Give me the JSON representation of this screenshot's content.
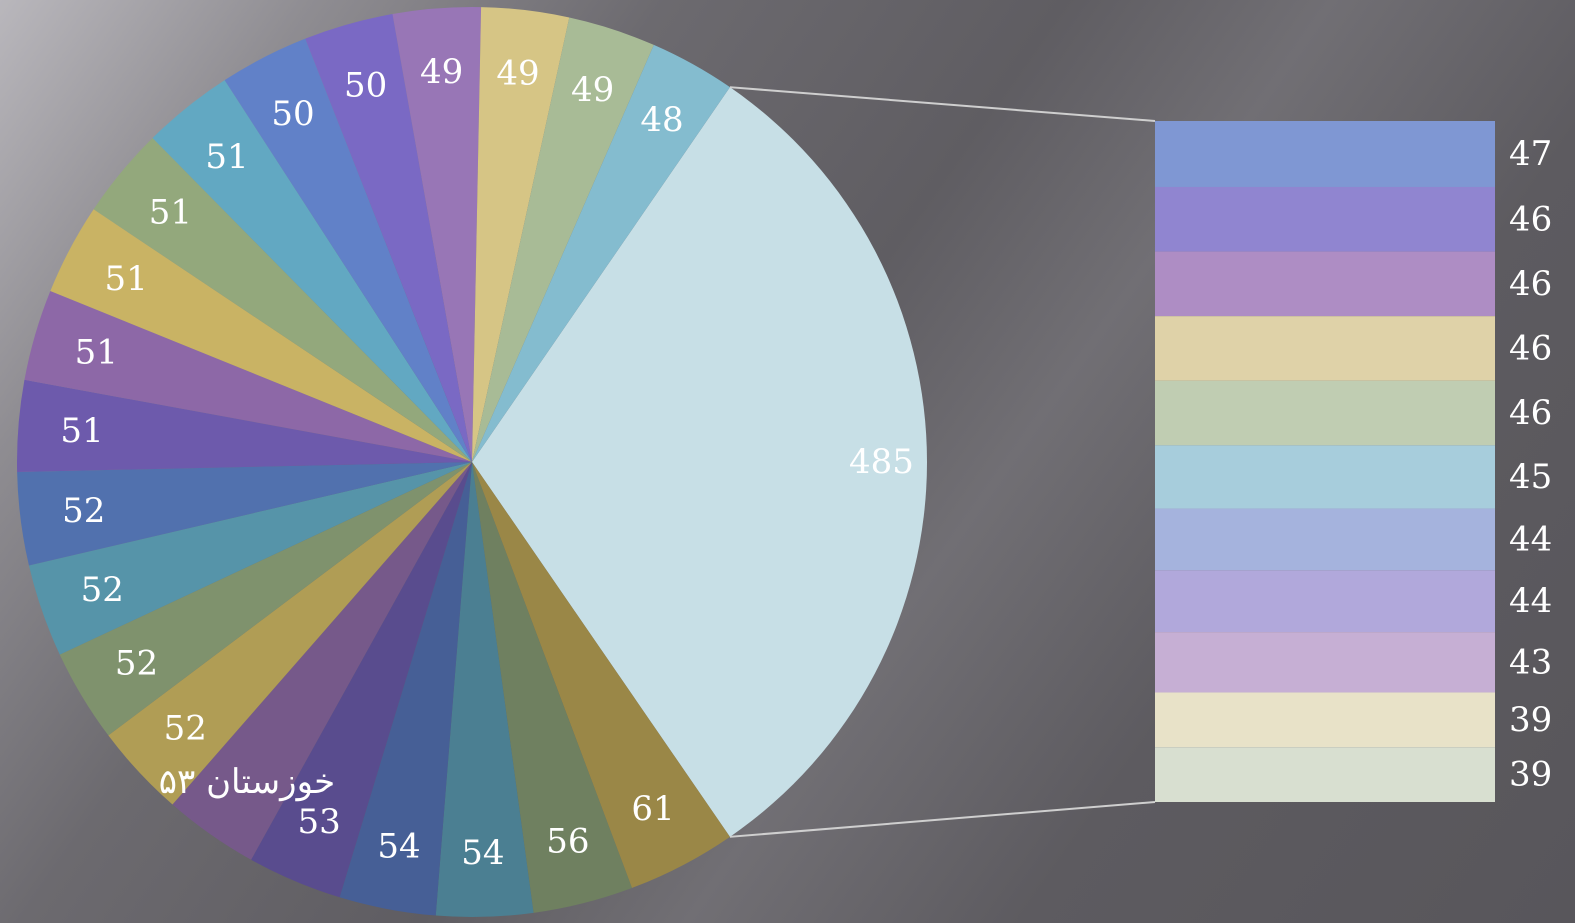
{
  "chart_data": {
    "type": "pie",
    "subtype": "bar-of-pie",
    "pie": {
      "slices": [
        {
          "value": 485,
          "label": "485",
          "color": "#c7dfe6"
        },
        {
          "value": 61,
          "label": "61",
          "color": "#9a8747"
        },
        {
          "value": 56,
          "label": "56",
          "color": "#6f8060"
        },
        {
          "value": 54,
          "label": "54",
          "color": "#4b7f92"
        },
        {
          "value": 54,
          "label": "54",
          "color": "#465f96"
        },
        {
          "value": 53,
          "label": "53",
          "color": "#594c8e"
        },
        {
          "value": 53,
          "label": "خوزستان ۵۳",
          "color": "#76598a"
        },
        {
          "value": 52,
          "label": "52",
          "color": "#b09d55"
        },
        {
          "value": 52,
          "label": "52",
          "color": "#7f926d"
        },
        {
          "value": 52,
          "label": "52",
          "color": "#5694a9"
        },
        {
          "value": 52,
          "label": "52",
          "color": "#5171ae"
        },
        {
          "value": 51,
          "label": "51",
          "color": "#6d5aac"
        },
        {
          "value": 51,
          "label": "51",
          "color": "#8d68a7"
        },
        {
          "value": 51,
          "label": "51",
          "color": "#c9b364"
        },
        {
          "value": 51,
          "label": "51",
          "color": "#93a87c"
        },
        {
          "value": 51,
          "label": "51",
          "color": "#62a8c2"
        },
        {
          "value": 50,
          "label": "50",
          "color": "#6181c8"
        },
        {
          "value": 50,
          "label": "50",
          "color": "#7a69c4"
        },
        {
          "value": 49,
          "label": "49",
          "color": "#9876b6"
        },
        {
          "value": 49,
          "label": "49",
          "color": "#d6c585"
        },
        {
          "value": 49,
          "label": "49",
          "color": "#a8bb96"
        },
        {
          "value": 48,
          "label": "48",
          "color": "#84bccf"
        }
      ]
    },
    "bar": {
      "items": [
        {
          "value": 47,
          "label": "47",
          "color": "#7f97d3"
        },
        {
          "value": 46,
          "label": "46",
          "color": "#9085d0"
        },
        {
          "value": 46,
          "label": "46",
          "color": "#ae8dc4"
        },
        {
          "value": 46,
          "label": "46",
          "color": "#dfd2a8"
        },
        {
          "value": 46,
          "label": "46",
          "color": "#c0cdb2"
        },
        {
          "value": 45,
          "label": "45",
          "color": "#a7cddc"
        },
        {
          "value": 44,
          "label": "44",
          "color": "#a5b3dd"
        },
        {
          "value": 44,
          "label": "44",
          "color": "#b1a8db"
        },
        {
          "value": 43,
          "label": "43",
          "color": "#c6afd4"
        },
        {
          "value": 39,
          "label": "39",
          "color": "#e8e2c8"
        },
        {
          "value": 39,
          "label": "39",
          "color": "#d8dfd0"
        }
      ]
    },
    "connector_color": "#cfcfcf",
    "label_color": "#ffffff"
  }
}
